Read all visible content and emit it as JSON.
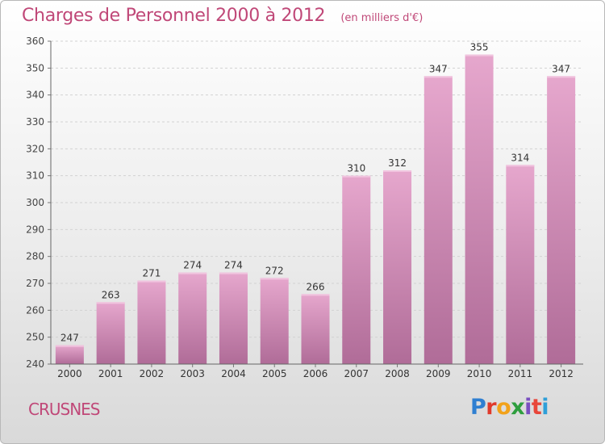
{
  "header": {
    "title": "Charges de Personnel 2000 à 2012",
    "subtitle": "(en milliers d'€)"
  },
  "commune": "CRUSNES",
  "logo": {
    "text": "Proxiti",
    "letters": [
      "P",
      "r",
      "o",
      "x",
      "i",
      "t",
      "i"
    ],
    "colors": [
      "#2f7fd1",
      "#e03a2b",
      "#f2a21a",
      "#2e9e3e",
      "#7a4fc0",
      "#e8463a",
      "#2f9fd8"
    ]
  },
  "colors": {
    "accent": "#c04878",
    "bar_top": "#e6a7cd",
    "bar_bottom": "#b06c98",
    "bar_highlight": "#f1c4df"
  },
  "chart_data": {
    "type": "bar",
    "title": "Charges de Personnel 2000 à 2012",
    "subtitle": "(en milliers d'€)",
    "xlabel": "",
    "ylabel": "",
    "categories": [
      "2000",
      "2001",
      "2002",
      "2003",
      "2004",
      "2005",
      "2006",
      "2007",
      "2008",
      "2009",
      "2010",
      "2011",
      "2012"
    ],
    "values": [
      247,
      263,
      271,
      274,
      274,
      272,
      266,
      310,
      312,
      347,
      355,
      314,
      347
    ],
    "ylim": [
      240,
      360
    ],
    "yticks": [
      240,
      250,
      260,
      270,
      280,
      290,
      300,
      310,
      320,
      330,
      340,
      350,
      360
    ],
    "grid": true,
    "legend": "none"
  }
}
